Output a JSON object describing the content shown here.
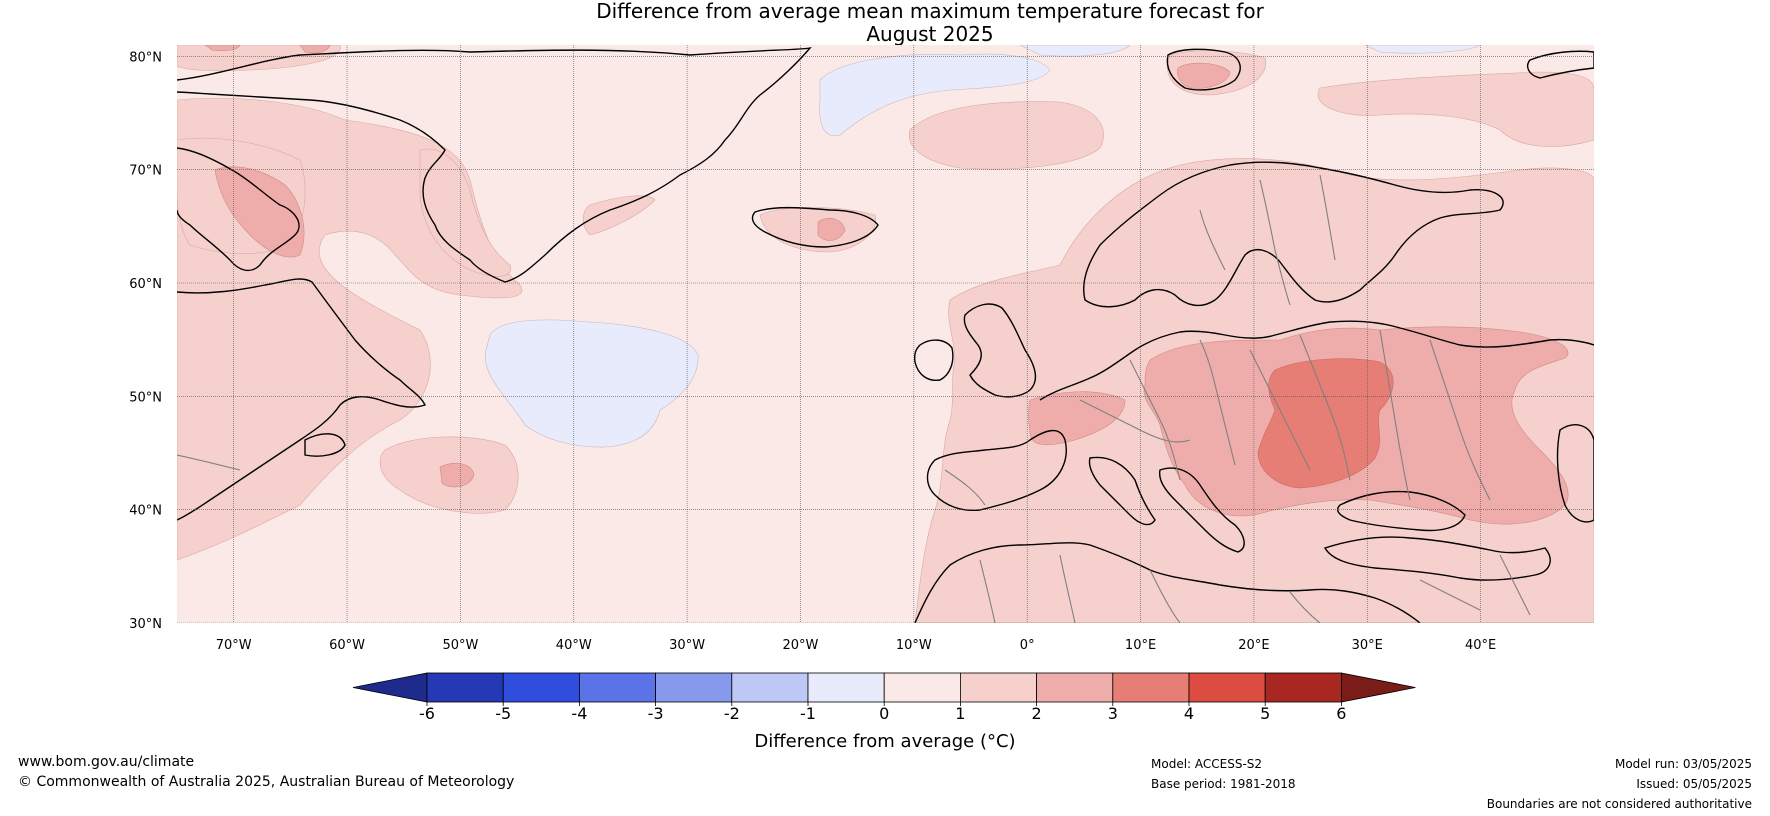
{
  "title": {
    "line1": "Difference from average mean maximum temperature forecast for",
    "line2": "August 2025"
  },
  "map": {
    "lat_labels": [
      "80°N",
      "70°N",
      "60°N",
      "50°N",
      "40°N",
      "30°N"
    ],
    "lon_labels": [
      "70°W",
      "60°W",
      "50°W",
      "40°W",
      "30°W",
      "20°W",
      "10°W",
      "0°",
      "10°E",
      "20°E",
      "30°E",
      "40°E"
    ],
    "colors": {
      "land_border": "#000000",
      "country_border": "#808080",
      "grid": "#555555",
      "bin_0_1": "#fbe9e7",
      "bin_1_2": "#f5d0cd",
      "bin_2_3": "#eeadaa",
      "bin_3_4": "#e67e76",
      "bin_m1_0": "#e8ebfb"
    }
  },
  "colorbar": {
    "label": "Difference from average (°C)",
    "ticks": [
      "-6",
      "-5",
      "-4",
      "-3",
      "-2",
      "-1",
      "0",
      "1",
      "2",
      "3",
      "4",
      "5",
      "6"
    ],
    "colors": [
      "#1e2a8c",
      "#2538b5",
      "#2f4ede",
      "#5b73e6",
      "#8699ec",
      "#bec8f5",
      "#e8ebfb",
      "#fbe9e7",
      "#f5d0cd",
      "#eeadaa",
      "#e67e76",
      "#dc4c41",
      "#a82721",
      "#7a1c18"
    ]
  },
  "footer": {
    "website": "www.bom.gov.au/climate",
    "copyright": "© Commonwealth of Australia 2025, Australian Bureau of Meteorology",
    "model": "Model: ACCESS-S2",
    "base_period": "Base period: 1981-2018",
    "model_run": "Model run: 03/05/2025",
    "issued": "Issued: 05/05/2025",
    "disclaimer": "Boundaries are not considered authoritative"
  }
}
